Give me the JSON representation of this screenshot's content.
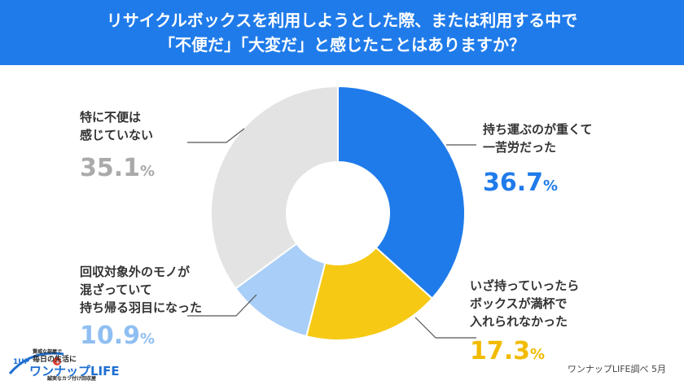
{
  "header": {
    "line1": "リサイクルボックスを利用しようとした際、または利用する中で",
    "line2": "「不便だ」「大変だ」と感じたことはありますか？"
  },
  "chart_data": {
    "type": "pie",
    "donut": true,
    "title": "リサイクルボックスを利用しようとした際、または利用する中で「不便だ」「大変だ」と感じたことはありますか？",
    "categories": [
      "持ち運ぶのが重くて一苦労だった",
      "いざ持っていったらボックスが満杯で入れられなかった",
      "回収対象外のモノが混ざっていて持ち帰る羽目になった",
      "特に不便は感じていない"
    ],
    "values": [
      36.7,
      17.3,
      10.9,
      35.1
    ],
    "colors": [
      "#1f7bea",
      "#f6c915",
      "#a9cef7",
      "#e3e3e3"
    ]
  },
  "labels": {
    "heavy": {
      "line1": "持ち運ぶのが重くて",
      "line2": "一苦労だった",
      "num": "36.7",
      "pct": "%"
    },
    "full": {
      "line1": "いざ持っていったら",
      "line2": "ボックスが満杯で",
      "line3": "入れられなかった",
      "num": "17.3",
      "pct": "%"
    },
    "mixed": {
      "line1": "回収対象外のモノが",
      "line2": "混ざっていて",
      "line3": "持ち帰る羽目になった",
      "num": "10.9",
      "pct": "%"
    },
    "none": {
      "line1": "特に不便は",
      "line2": "感じていない",
      "num": "35.1",
      "pct": "%"
    }
  },
  "source": "ワンナップLIFE調べ 5月",
  "logo": {
    "tag": "1UP",
    "small1": "賢威な部屋で",
    "small2": "毎日の生活に",
    "plus": "+1",
    "brand": "ワンナップLIFE",
    "tagline": "誠実なカツ付け回収屋"
  }
}
